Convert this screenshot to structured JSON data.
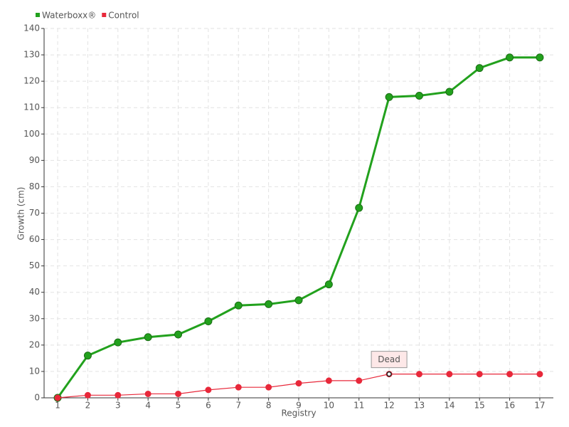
{
  "chart_data": {
    "type": "line",
    "x_label": "Registry",
    "y_label": "Growth (cm)",
    "x": [
      1,
      2,
      3,
      4,
      5,
      6,
      7,
      8,
      9,
      10,
      11,
      12,
      13,
      14,
      15,
      16,
      17
    ],
    "series": [
      {
        "name": "Waterboxx®",
        "color": "#22a11d",
        "values": [
          0,
          16,
          21,
          23,
          24,
          29,
          35,
          35.5,
          37,
          43,
          72,
          114,
          114.5,
          116,
          125,
          129,
          129
        ]
      },
      {
        "name": "Control",
        "color": "#e8283a",
        "values": [
          0,
          1,
          1,
          1.5,
          1.5,
          3,
          4,
          4,
          5.5,
          6.5,
          6.5,
          9,
          9,
          9,
          9,
          9,
          9
        ]
      }
    ],
    "annotations": [
      {
        "text": "Dead",
        "x": 12,
        "y": 9
      }
    ],
    "xlim": [
      0.55,
      17.45
    ],
    "xticks": [
      1,
      2,
      3,
      4,
      5,
      6,
      7,
      8,
      9,
      10,
      11,
      12,
      13,
      14,
      15,
      16,
      17
    ],
    "ylim": [
      0,
      140
    ],
    "yticks": [
      0,
      10,
      20,
      30,
      40,
      50,
      60,
      70,
      80,
      90,
      100,
      110,
      120,
      130,
      140
    ],
    "grid": true,
    "legend": "top-left"
  }
}
